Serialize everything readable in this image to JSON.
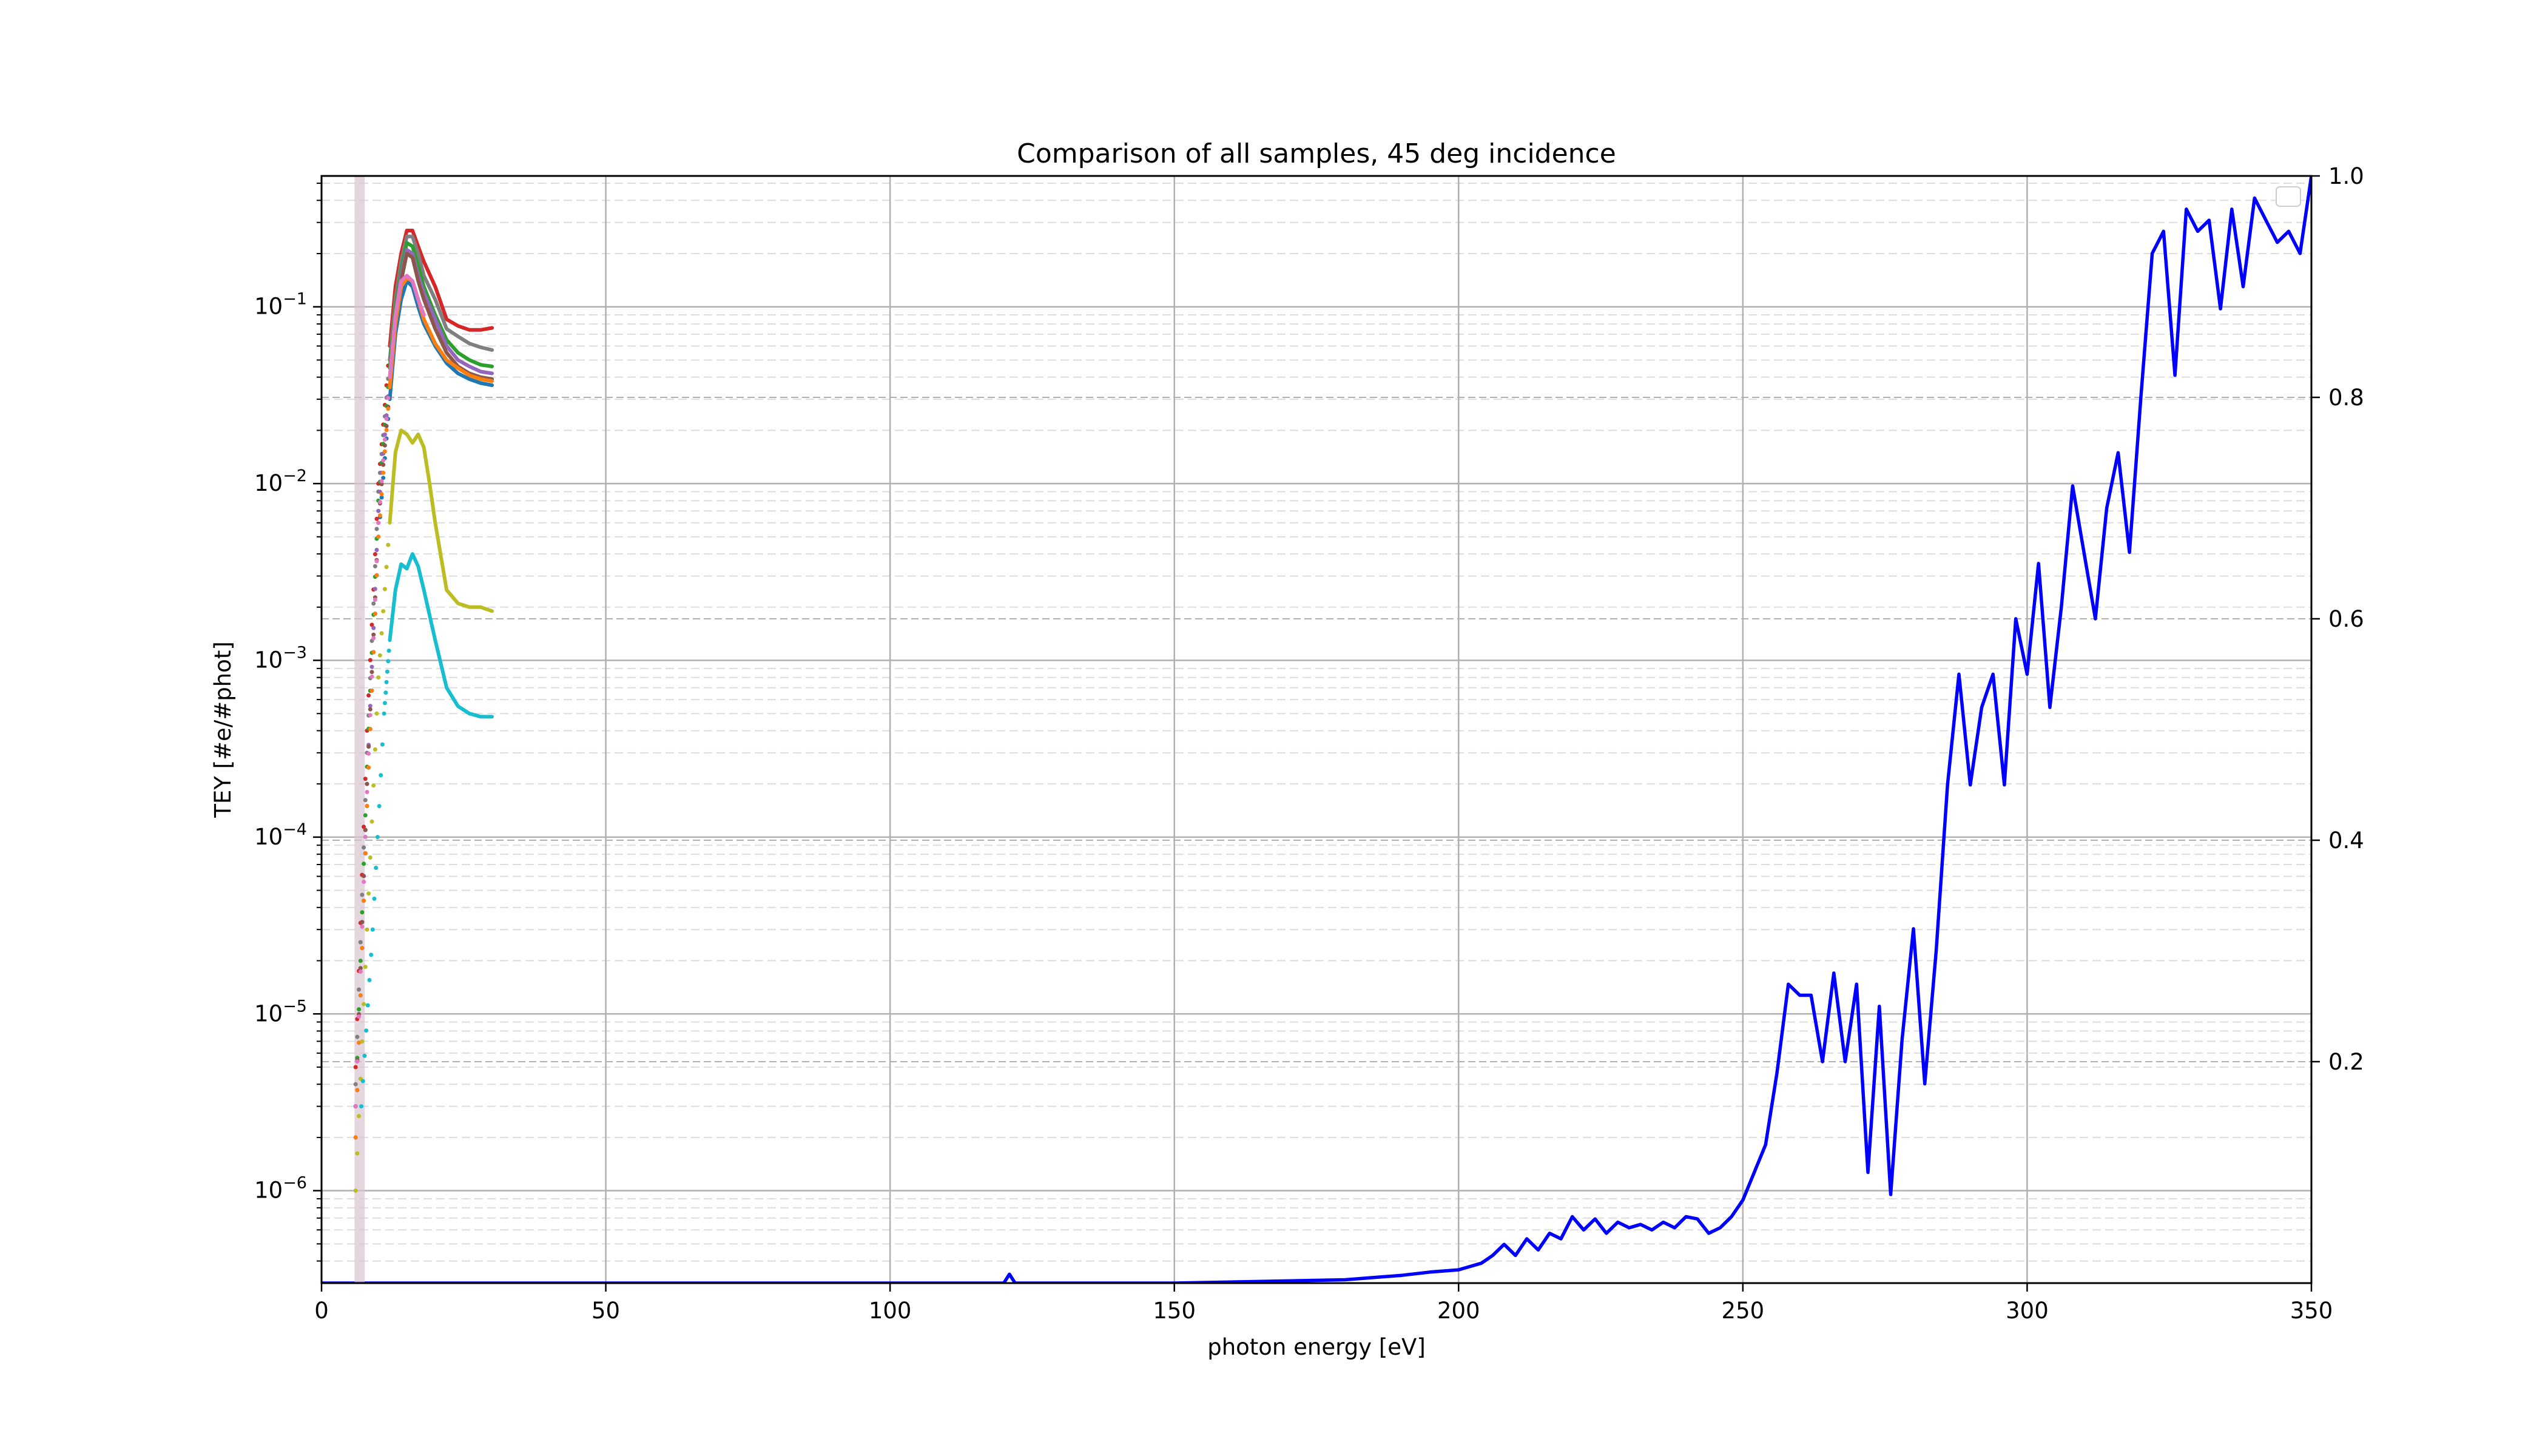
{
  "chart_data": {
    "type": "line",
    "title": "Comparison of all samples, 45 deg incidence",
    "xlabel": "photon energy [eV]",
    "ylabel": "TEY [#e/#phot]",
    "y2label": "",
    "xlim": [
      0,
      350
    ],
    "ylim": [
      3e-07,
      0.55
    ],
    "y_scale": "log",
    "y2lim": [
      0.0,
      1.0
    ],
    "grid": true,
    "legend": "top-right (empty)",
    "x_ticks": [
      0,
      50,
      100,
      150,
      200,
      250,
      300,
      350
    ],
    "x_tick_labels": [
      "0",
      "50",
      "100",
      "150",
      "200",
      "250",
      "300",
      "350"
    ],
    "y_ticks": [
      1e-06,
      1e-05,
      0.0001,
      0.001,
      0.01,
      0.1
    ],
    "y_tick_labels": [
      {
        "base": "10",
        "exp": "−6"
      },
      {
        "base": "10",
        "exp": "−5"
      },
      {
        "base": "10",
        "exp": "−4"
      },
      {
        "base": "10",
        "exp": "−3"
      },
      {
        "base": "10",
        "exp": "−2"
      },
      {
        "base": "10",
        "exp": "−1"
      }
    ],
    "y2_ticks": [
      0.2,
      0.4,
      0.6,
      0.8,
      1.0
    ],
    "y2_tick_labels": [
      "0.2",
      "0.4",
      "0.6",
      "0.8",
      "1.0"
    ],
    "series_left": [
      {
        "color": "#d62728",
        "x": [
          6,
          8,
          10,
          12,
          13,
          14,
          15,
          16,
          17,
          18,
          20,
          22,
          24,
          26,
          28,
          30
        ],
        "y": [
          5e-06,
          0.0004,
          0.01,
          0.06,
          0.13,
          0.2,
          0.27,
          0.27,
          0.22,
          0.18,
          0.13,
          0.085,
          0.078,
          0.074,
          0.074,
          0.076
        ]
      },
      {
        "color": "#7f7f7f",
        "x": [
          6,
          8,
          10,
          12,
          13,
          14,
          15,
          16,
          17,
          18,
          20,
          22,
          24,
          26,
          28,
          30
        ],
        "y": [
          4e-06,
          0.0003,
          0.009,
          0.05,
          0.11,
          0.18,
          0.25,
          0.25,
          0.2,
          0.15,
          0.11,
          0.075,
          0.068,
          0.062,
          0.059,
          0.057
        ]
      },
      {
        "color": "#2ca02c",
        "x": [
          6,
          8,
          10,
          12,
          13,
          14,
          15,
          16,
          17,
          18,
          20,
          22,
          24,
          26,
          28,
          30
        ],
        "y": [
          3e-06,
          0.00025,
          0.008,
          0.045,
          0.1,
          0.16,
          0.23,
          0.22,
          0.17,
          0.13,
          0.09,
          0.065,
          0.055,
          0.05,
          0.047,
          0.046
        ]
      },
      {
        "color": "#9467bd",
        "x": [
          6,
          8,
          10,
          12,
          13,
          14,
          15,
          16,
          17,
          18,
          20,
          22,
          24,
          26,
          28,
          30
        ],
        "y": [
          3e-06,
          0.0002,
          0.007,
          0.04,
          0.09,
          0.15,
          0.21,
          0.2,
          0.15,
          0.12,
          0.085,
          0.06,
          0.05,
          0.046,
          0.043,
          0.042
        ]
      },
      {
        "color": "#8c564b",
        "x": [
          6,
          8,
          10,
          12,
          13,
          14,
          15,
          16,
          17,
          18,
          20,
          22,
          24,
          26,
          28,
          30
        ],
        "y": [
          3e-06,
          0.0002,
          0.006,
          0.035,
          0.08,
          0.14,
          0.2,
          0.19,
          0.14,
          0.11,
          0.075,
          0.055,
          0.046,
          0.042,
          0.04,
          0.039
        ]
      },
      {
        "color": "#1f77b4",
        "x": [
          6,
          8,
          10,
          12,
          13,
          14,
          15,
          16,
          17,
          18,
          20,
          22,
          24,
          26,
          28,
          30
        ],
        "y": [
          2e-06,
          0.00015,
          0.005,
          0.03,
          0.07,
          0.11,
          0.14,
          0.13,
          0.1,
          0.08,
          0.06,
          0.048,
          0.042,
          0.039,
          0.037,
          0.036
        ]
      },
      {
        "color": "#ff7f0e",
        "x": [
          6,
          8,
          10,
          12,
          13,
          14,
          15,
          16,
          17,
          18,
          20,
          22,
          24,
          26,
          28,
          30
        ],
        "y": [
          2e-06,
          0.00015,
          0.005,
          0.035,
          0.08,
          0.13,
          0.145,
          0.14,
          0.11,
          0.085,
          0.062,
          0.05,
          0.045,
          0.041,
          0.039,
          0.038
        ]
      },
      {
        "color": "#e377c2",
        "x": [
          6,
          8,
          10,
          12,
          13,
          14,
          15,
          16,
          17,
          18
        ],
        "y": [
          3e-06,
          0.00018,
          0.006,
          0.04,
          0.09,
          0.14,
          0.15,
          0.14,
          0.11,
          0.09
        ]
      },
      {
        "color": "#bcbd22",
        "x": [
          6,
          8,
          10,
          12,
          13,
          14,
          15,
          16,
          17,
          18,
          19,
          20,
          22,
          24,
          26,
          28,
          30
        ],
        "y": [
          1e-06,
          3e-05,
          0.0008,
          0.006,
          0.015,
          0.02,
          0.019,
          0.017,
          0.019,
          0.016,
          0.01,
          0.006,
          0.0025,
          0.0021,
          0.002,
          0.002,
          0.0019
        ]
      },
      {
        "color": "#17becf",
        "x": [
          7,
          9,
          11,
          12,
          13,
          14,
          15,
          16,
          17,
          18,
          19,
          20,
          22,
          24,
          26,
          28,
          30
        ],
        "y": [
          3e-06,
          3e-05,
          0.0005,
          0.0013,
          0.0025,
          0.0035,
          0.0033,
          0.004,
          0.0034,
          0.0025,
          0.0018,
          0.0013,
          0.0007,
          0.00055,
          0.0005,
          0.00048,
          0.00048
        ]
      }
    ],
    "series_right": {
      "color": "#0000ff",
      "x": [
        0,
        100,
        120,
        121,
        122,
        123,
        150,
        180,
        190,
        195,
        200,
        204,
        206,
        208,
        210,
        212,
        214,
        216,
        218,
        220,
        222,
        224,
        226,
        228,
        230,
        232,
        234,
        236,
        238,
        240,
        242,
        244,
        246,
        248,
        250,
        252,
        254,
        256,
        258,
        260,
        262,
        264,
        266,
        268,
        270,
        272,
        274,
        276,
        278,
        280,
        282,
        284,
        286,
        288,
        290,
        292,
        294,
        296,
        298,
        300,
        302,
        304,
        306,
        308,
        310,
        312,
        314,
        316,
        318,
        320,
        322,
        324,
        326,
        328,
        330,
        332,
        334,
        336,
        338,
        340,
        342,
        344,
        346,
        348,
        350
      ],
      "y": [
        0.0,
        0.0,
        0.0,
        0.008,
        0.0,
        0.0,
        0.0,
        0.003,
        0.007,
        0.01,
        0.012,
        0.018,
        0.025,
        0.035,
        0.025,
        0.04,
        0.03,
        0.045,
        0.04,
        0.06,
        0.048,
        0.058,
        0.045,
        0.055,
        0.05,
        0.053,
        0.048,
        0.055,
        0.05,
        0.06,
        0.058,
        0.045,
        0.05,
        0.06,
        0.075,
        0.1,
        0.125,
        0.19,
        0.27,
        0.26,
        0.26,
        0.2,
        0.28,
        0.2,
        0.27,
        0.1,
        0.25,
        0.08,
        0.22,
        0.32,
        0.18,
        0.3,
        0.45,
        0.55,
        0.45,
        0.52,
        0.55,
        0.45,
        0.6,
        0.55,
        0.65,
        0.52,
        0.61,
        0.72,
        0.66,
        0.6,
        0.7,
        0.75,
        0.66,
        0.8,
        0.93,
        0.95,
        0.82,
        0.97,
        0.95,
        0.96,
        0.88,
        0.97,
        0.9,
        0.98,
        0.96,
        0.94,
        0.95,
        0.93,
        1.0
      ]
    }
  }
}
